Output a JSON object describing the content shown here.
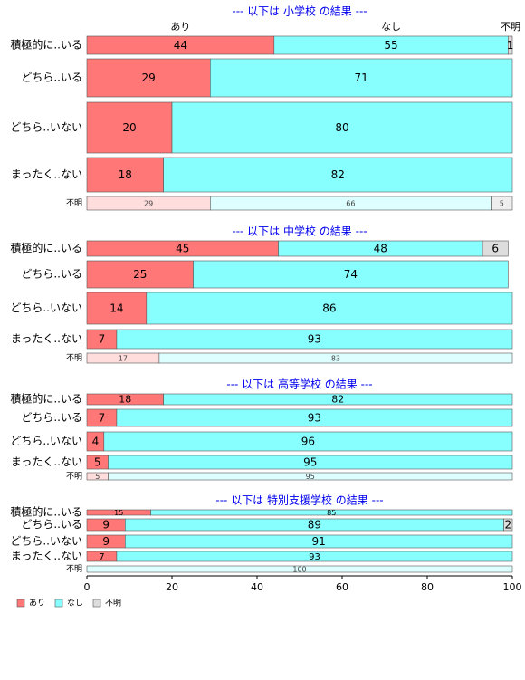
{
  "chart_data": {
    "type": "bar",
    "orientation": "horizontal",
    "stacked": true,
    "percent": true,
    "xlim": [
      0,
      100
    ],
    "xticks": [
      0,
      20,
      40,
      60,
      80,
      100
    ],
    "grid": false,
    "legend_position": "bottom-left",
    "series": [
      {
        "name": "あり",
        "color": "#FF7777"
      },
      {
        "name": "なし",
        "color": "#88FFFF"
      },
      {
        "name": "不明",
        "color": "#DDDDDD"
      }
    ],
    "header_labels": [
      "あり",
      "なし",
      "不明"
    ],
    "panels": [
      {
        "title": "--- 以下は 小学校 の結果 ---",
        "rows": [
          {
            "label": "積極的に..いる",
            "values": [
              44,
              55,
              1
            ]
          },
          {
            "label": "どちら..いる",
            "values": [
              29,
              71,
              0
            ]
          },
          {
            "label": "どちら..いない",
            "values": [
              20,
              80,
              0
            ]
          },
          {
            "label": "まったく..ない",
            "values": [
              18,
              82,
              0
            ]
          },
          {
            "label": "不明",
            "values": [
              29,
              66,
              5
            ],
            "faded": true
          }
        ]
      },
      {
        "title": "--- 以下は 中学校 の結果 ---",
        "rows": [
          {
            "label": "積極的に..いる",
            "values": [
              45,
              48,
              6
            ]
          },
          {
            "label": "どちら..いる",
            "values": [
              25,
              74,
              0
            ]
          },
          {
            "label": "どちら..いない",
            "values": [
              14,
              86,
              0
            ]
          },
          {
            "label": "まったく..ない",
            "values": [
              7,
              93,
              0
            ]
          },
          {
            "label": "不明",
            "values": [
              17,
              83,
              0
            ],
            "faded": true
          }
        ]
      },
      {
        "title": "--- 以下は 高等学校 の結果 ---",
        "rows": [
          {
            "label": "積極的に..いる",
            "values": [
              18,
              82,
              0
            ]
          },
          {
            "label": "どちら..いる",
            "values": [
              7,
              93,
              0
            ]
          },
          {
            "label": "どちら..いない",
            "values": [
              4,
              96,
              0
            ]
          },
          {
            "label": "まったく..ない",
            "values": [
              5,
              95,
              0
            ]
          },
          {
            "label": "不明",
            "values": [
              5,
              95,
              0
            ],
            "faded": true
          }
        ]
      },
      {
        "title": "--- 以下は 特別支援学校 の結果 ---",
        "rows": [
          {
            "label": "積極的に..いる",
            "values": [
              15,
              85,
              0
            ]
          },
          {
            "label": "どちら..いる",
            "values": [
              9,
              89,
              2
            ]
          },
          {
            "label": "どちら..いない",
            "values": [
              9,
              91,
              0
            ]
          },
          {
            "label": "まったく..ない",
            "values": [
              7,
              93,
              0
            ]
          },
          {
            "label": "不明",
            "values": [
              0,
              100,
              0
            ],
            "faded": true
          }
        ]
      }
    ]
  }
}
